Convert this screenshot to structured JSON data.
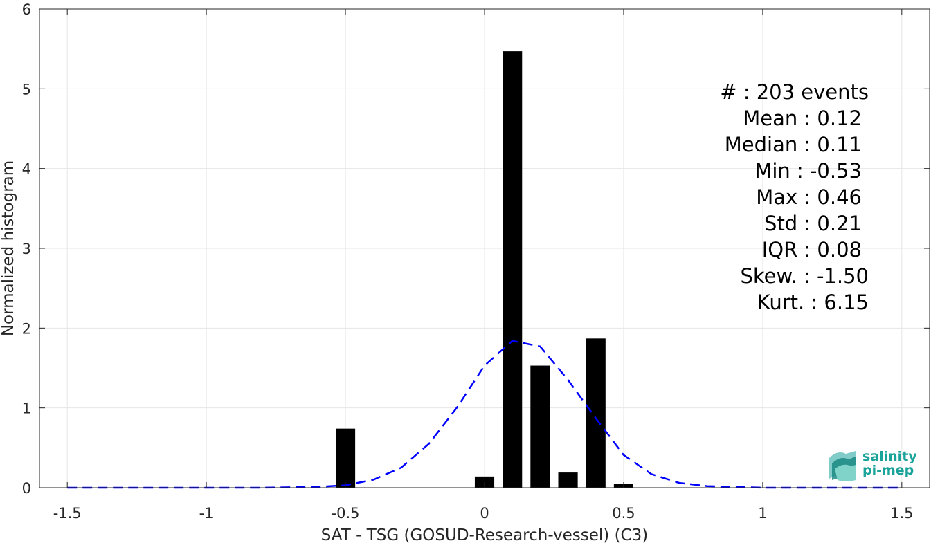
{
  "chart_data": {
    "type": "bar",
    "xlabel": "SAT - TSG (GOSUD-Research-vessel) (C3)",
    "ylabel": "Normalized histogram",
    "xlim": [
      -1.6,
      1.6
    ],
    "ylim": [
      0,
      6
    ],
    "xticks": [
      -1.5,
      -1,
      -0.5,
      0,
      0.5,
      1,
      1.5
    ],
    "xtick_labels": [
      "-1.5",
      "-1",
      "-0.5",
      "0",
      "0.5",
      "1",
      "1.5"
    ],
    "yticks": [
      0,
      1,
      2,
      3,
      4,
      5,
      6
    ],
    "ytick_labels": [
      "0",
      "1",
      "2",
      "3",
      "4",
      "5",
      "6"
    ],
    "grid": true,
    "bar_color": "#000000",
    "bar_width": 0.07,
    "bars": [
      {
        "x": -0.5,
        "value": 0.74
      },
      {
        "x": 0.0,
        "value": 0.14
      },
      {
        "x": 0.1,
        "value": 5.47
      },
      {
        "x": 0.2,
        "value": 1.53
      },
      {
        "x": 0.3,
        "value": 0.19
      },
      {
        "x": 0.4,
        "value": 1.87
      },
      {
        "x": 0.5,
        "value": 0.05
      }
    ],
    "fit_curve": {
      "style": "dashed",
      "color": "#0000ff",
      "x": [
        -1.5,
        -1.2,
        -1.0,
        -0.8,
        -0.6,
        -0.5,
        -0.4,
        -0.3,
        -0.2,
        -0.1,
        0.0,
        0.1,
        0.2,
        0.3,
        0.4,
        0.5,
        0.6,
        0.7,
        0.8,
        1.0,
        1.2,
        1.5
      ],
      "y": [
        0.0,
        0.0,
        0.0,
        0.0,
        0.01,
        0.03,
        0.1,
        0.25,
        0.55,
        1.0,
        1.53,
        1.84,
        1.77,
        1.35,
        0.87,
        0.41,
        0.17,
        0.06,
        0.02,
        0.0,
        0.0,
        0.0
      ]
    },
    "annotations": [
      "#  : 203 events",
      "Mean : 0.12",
      "Median : 0.11",
      "Min : -0.53",
      "Max : 0.46",
      "Std : 0.21",
      "IQR : 0.08",
      "Skew. : -1.50",
      "Kurt. : 6.15"
    ]
  },
  "logo": {
    "line1": "salinity",
    "line2": "pi-mep",
    "color": "#1aa39a"
  }
}
